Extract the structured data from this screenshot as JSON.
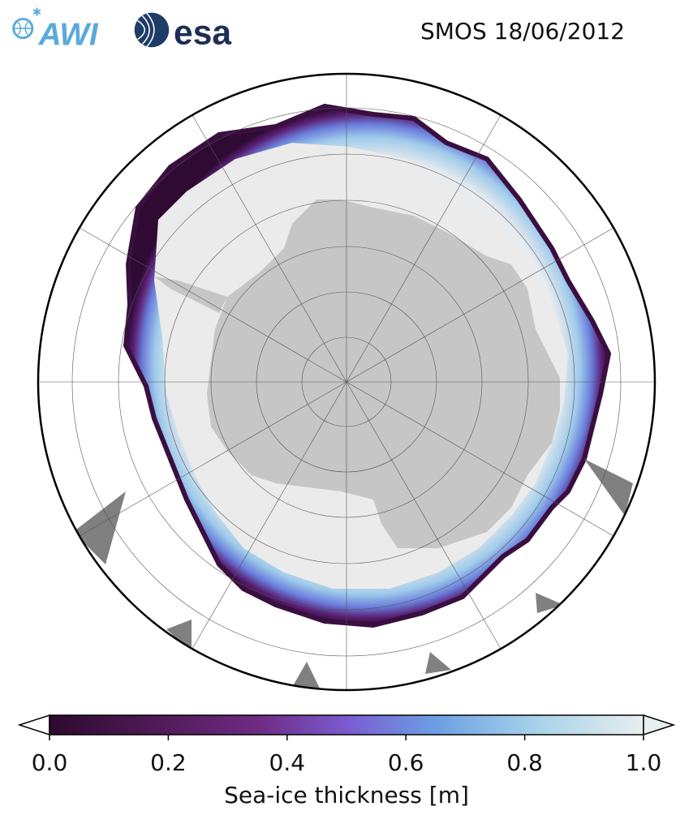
{
  "header": {
    "title": "SMOS 18/06/2012",
    "logo_awi_text": "AWI",
    "logo_esa_text": "esa"
  },
  "colors": {
    "land": "#c6c6c6",
    "thick_ice": "#ebebeb",
    "nodata": "#808080",
    "colormap": [
      "#2d0a2e",
      "#4a1750",
      "#6e2b82",
      "#7a5bd1",
      "#6b9fe3",
      "#a8d2ea",
      "#e7eeee"
    ]
  },
  "colorbar": {
    "label": "Sea-ice thickness [m]",
    "min": 0.0,
    "max": 1.0,
    "ticks": [
      "0.0",
      "0.2",
      "0.4",
      "0.6",
      "0.8",
      "1.0"
    ],
    "extend": "both"
  }
}
